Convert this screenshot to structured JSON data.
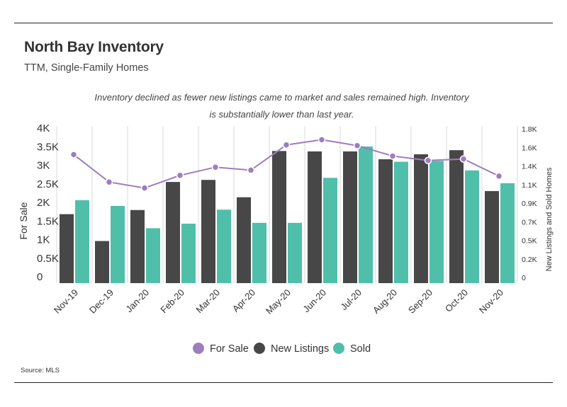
{
  "header": {
    "title": "North Bay Inventory",
    "subtitle": "TTM, Single-Family Homes",
    "annotation": "Inventory declined as fewer new listings came to market and sales remained high. Inventory is substantially lower than last year."
  },
  "footer": {
    "source": "Source:  MLS"
  },
  "colors": {
    "for_sale": "#9e7dbf",
    "new_listings": "#474747",
    "sold": "#4fbfaa",
    "grid": "#d9d9d9"
  },
  "chart_data": {
    "type": "bar",
    "categories": [
      "Nov-19",
      "Dec-19",
      "Jan-20",
      "Feb-20",
      "Mar-20",
      "Apr-20",
      "May-20",
      "Jun-20",
      "Jul-20",
      "Aug-20",
      "Sep-20",
      "Oct-20",
      "Nov-20"
    ],
    "y_left": {
      "label": "For Sale",
      "ticks": [
        "0",
        "0.5K",
        "1K",
        "1.5K",
        "2K",
        "2.5K",
        "3K",
        "3.5K",
        "4K"
      ],
      "range": [
        0,
        4000
      ]
    },
    "y_right": {
      "label": "New Listings and Sold Homes",
      "ticks": [
        "0",
        "0.2K",
        "0.5K",
        "0.7K",
        "0.9K",
        "1.1K",
        "1.4K",
        "1.6K",
        "1.8K"
      ],
      "range": [
        0,
        1800
      ]
    },
    "series": [
      {
        "name": "For Sale",
        "type": "line",
        "axis": "left",
        "color": "#9e7dbf",
        "values": [
          3460,
          2720,
          2560,
          2900,
          3120,
          3040,
          3720,
          3860,
          3700,
          3420,
          3300,
          3340,
          2880
        ]
      },
      {
        "name": "New Listings",
        "type": "bar",
        "axis": "right",
        "color": "#474747",
        "values": [
          835,
          510,
          885,
          1225,
          1250,
          1040,
          1600,
          1595,
          1595,
          1500,
          1560,
          1610,
          1115
        ]
      },
      {
        "name": "Sold",
        "type": "bar",
        "axis": "right",
        "color": "#4fbfaa",
        "values": [
          1005,
          935,
          665,
          720,
          890,
          730,
          730,
          1275,
          1655,
          1470,
          1480,
          1365,
          1210
        ]
      }
    ],
    "legend": {
      "position": "bottom",
      "items": [
        "For Sale",
        "New Listings",
        "Sold"
      ]
    },
    "grid": {
      "horizontal": false,
      "vertical": true
    }
  }
}
